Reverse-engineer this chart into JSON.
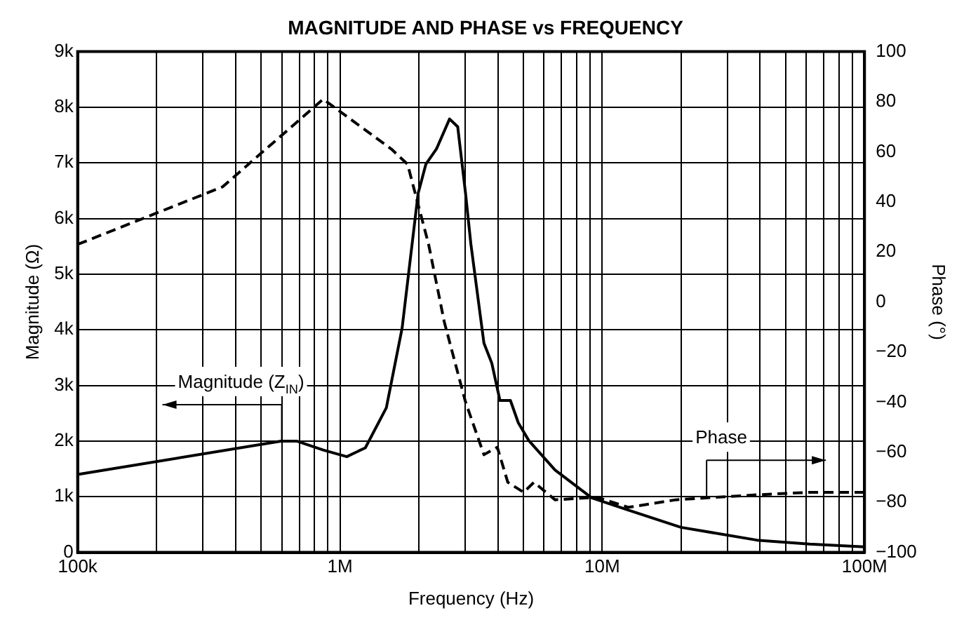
{
  "chart_data": {
    "type": "line",
    "title": "MAGNITUDE AND PHASE vs FREQUENCY",
    "xlabel": "Frequency (Hz)",
    "ylabel": "Magnitude (Ω)",
    "y2label": "Phase (°)",
    "log": "x",
    "grid": true,
    "legend": false,
    "marker": "none",
    "xlim": [
      100000,
      100000000
    ],
    "xticks": [
      {
        "value": 100000,
        "label": "100k"
      },
      {
        "value": 200000,
        "label": null
      },
      {
        "value": 300000,
        "label": null
      },
      {
        "value": 400000,
        "label": null
      },
      {
        "value": 500000,
        "label": null
      },
      {
        "value": 600000,
        "label": null
      },
      {
        "value": 700000,
        "label": null
      },
      {
        "value": 800000,
        "label": null
      },
      {
        "value": 900000,
        "label": null
      },
      {
        "value": 1000000,
        "label": "1M"
      },
      {
        "value": 2000000,
        "label": null
      },
      {
        "value": 3000000,
        "label": null
      },
      {
        "value": 4000000,
        "label": null
      },
      {
        "value": 5000000,
        "label": null
      },
      {
        "value": 6000000,
        "label": null
      },
      {
        "value": 7000000,
        "label": null
      },
      {
        "value": 8000000,
        "label": null
      },
      {
        "value": 9000000,
        "label": null
      },
      {
        "value": 10000000,
        "label": "10M"
      },
      {
        "value": 20000000,
        "label": null
      },
      {
        "value": 30000000,
        "label": null
      },
      {
        "value": 40000000,
        "label": null
      },
      {
        "value": 50000000,
        "label": null
      },
      {
        "value": 60000000,
        "label": null
      },
      {
        "value": 70000000,
        "label": null
      },
      {
        "value": 80000000,
        "label": null
      },
      {
        "value": 90000000,
        "label": null
      },
      {
        "value": 100000000,
        "label": "100M"
      }
    ],
    "ylim": [
      0,
      9000
    ],
    "yticks": [
      0,
      {
        "value": 1000,
        "label": "1k"
      },
      {
        "value": 2000,
        "label": "2k"
      },
      {
        "value": 3000,
        "label": "3k"
      },
      {
        "value": 4000,
        "label": "4k"
      },
      {
        "value": 5000,
        "label": "5k"
      },
      {
        "value": 6000,
        "label": "6k"
      },
      {
        "value": 7000,
        "label": "7k"
      },
      {
        "value": 8000,
        "label": "8k"
      },
      {
        "value": 9000,
        "label": "9k"
      }
    ],
    "y2lim": [
      -100,
      100
    ],
    "y2ticks": [
      {
        "value": -100,
        "label": "−100"
      },
      {
        "value": -80,
        "label": "−80"
      },
      {
        "value": -60,
        "label": "−60"
      },
      {
        "value": -40,
        "label": "−40"
      },
      {
        "value": -20,
        "label": "−20"
      },
      0,
      20,
      40,
      60,
      80,
      100
    ],
    "annotations": [
      {
        "text": "Magnitude (Z$_{IN}$)",
        "x": 600000,
        "y": 2000
      },
      {
        "text": "Phase",
        "x": 25000000,
        "y": 1000
      }
    ],
    "series": [
      {
        "color": "#000000",
        "line_style": "solid",
        "x": [
          100000,
          596000,
          684000,
          863000,
          1062000,
          1250000,
          1503000,
          1726000,
          1986000,
          2128000,
          2333000,
          2618000,
          2812000,
          3013000,
          3155000,
          3540000,
          3793000,
          4074000,
          4467000,
          4786000,
          5248000,
          6607000,
          9120000,
          12590000,
          19950000,
          38900000,
          61660000,
          100000000
        ],
        "values": [
          1400,
          2000,
          2000,
          1840,
          1720,
          1880,
          2600,
          4030,
          6450,
          6980,
          7250,
          7790,
          7650,
          6450,
          5550,
          3760,
          3400,
          2730,
          2730,
          2330,
          2010,
          1480,
          980,
          760,
          450,
          220,
          150,
          100
        ]
      },
      {
        "color": "#000000",
        "line_style": "dashed",
        "axis": "y2",
        "x": [
          100000,
          357000,
          863000,
          1574000,
          1811000,
          1941000,
          2178000,
          2500000,
          3013000,
          3540000,
          3981000,
          4365000,
          5012000,
          5495000,
          6607000,
          9550000,
          12590000,
          19050000,
          38900000,
          61660000,
          100000000
        ],
        "values": [
          23,
          46,
          81,
          61,
          55,
          43,
          23,
          -8,
          -40,
          -61,
          -58,
          -72,
          -76,
          -72,
          -79,
          -78,
          -82,
          -79,
          -77,
          -76,
          -76
        ]
      }
    ]
  }
}
